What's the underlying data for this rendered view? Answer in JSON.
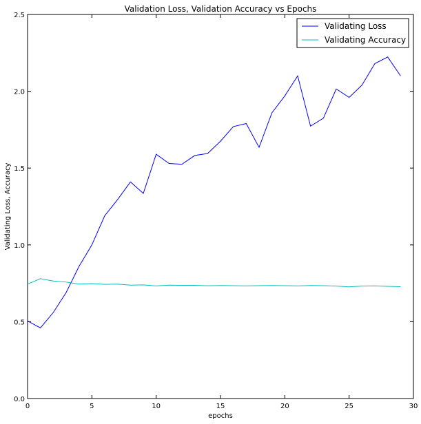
{
  "chart_data": {
    "type": "line",
    "title": "Validation Loss, Validation Accuracy vs Epochs",
    "xlabel": "epochs",
    "ylabel": "Validating Loss, Accuracy",
    "xlim": [
      0,
      30
    ],
    "ylim": [
      0.0,
      2.5
    ],
    "xticks": [
      0,
      5,
      10,
      15,
      20,
      25,
      30
    ],
    "yticks": [
      0.0,
      0.5,
      1.0,
      1.5,
      2.0,
      2.5
    ],
    "xtick_labels": [
      "0",
      "5",
      "10",
      "15",
      "20",
      "25",
      "30"
    ],
    "ytick_labels": [
      "0.0",
      "0.5",
      "1.0",
      "1.5",
      "2.0",
      "2.5"
    ],
    "grid": false,
    "legend_position": "top-right",
    "x": [
      0,
      1,
      2,
      3,
      4,
      5,
      6,
      7,
      8,
      9,
      10,
      11,
      12,
      13,
      14,
      15,
      16,
      17,
      18,
      19,
      20,
      21,
      22,
      23,
      24,
      25,
      26,
      27,
      28,
      29
    ],
    "series": [
      {
        "name": "Validating Loss",
        "color": "#0000ff",
        "values": [
          0.505,
          0.46,
          0.56,
          0.69,
          0.86,
          1.0,
          1.19,
          1.295,
          1.41,
          1.335,
          1.59,
          1.53,
          1.525,
          1.582,
          1.595,
          1.675,
          1.77,
          1.79,
          1.635,
          1.86,
          1.97,
          2.1,
          1.773,
          1.825,
          2.015,
          1.96,
          2.04,
          2.18,
          2.223,
          2.1
        ]
      },
      {
        "name": "Validating Accuracy",
        "color": "#00bfbf",
        "values": [
          0.745,
          0.78,
          0.765,
          0.758,
          0.745,
          0.748,
          0.743,
          0.745,
          0.738,
          0.74,
          0.733,
          0.738,
          0.737,
          0.737,
          0.734,
          0.736,
          0.735,
          0.733,
          0.735,
          0.736,
          0.735,
          0.733,
          0.736,
          0.735,
          0.732,
          0.727,
          0.732,
          0.733,
          0.73,
          0.728
        ]
      }
    ]
  }
}
